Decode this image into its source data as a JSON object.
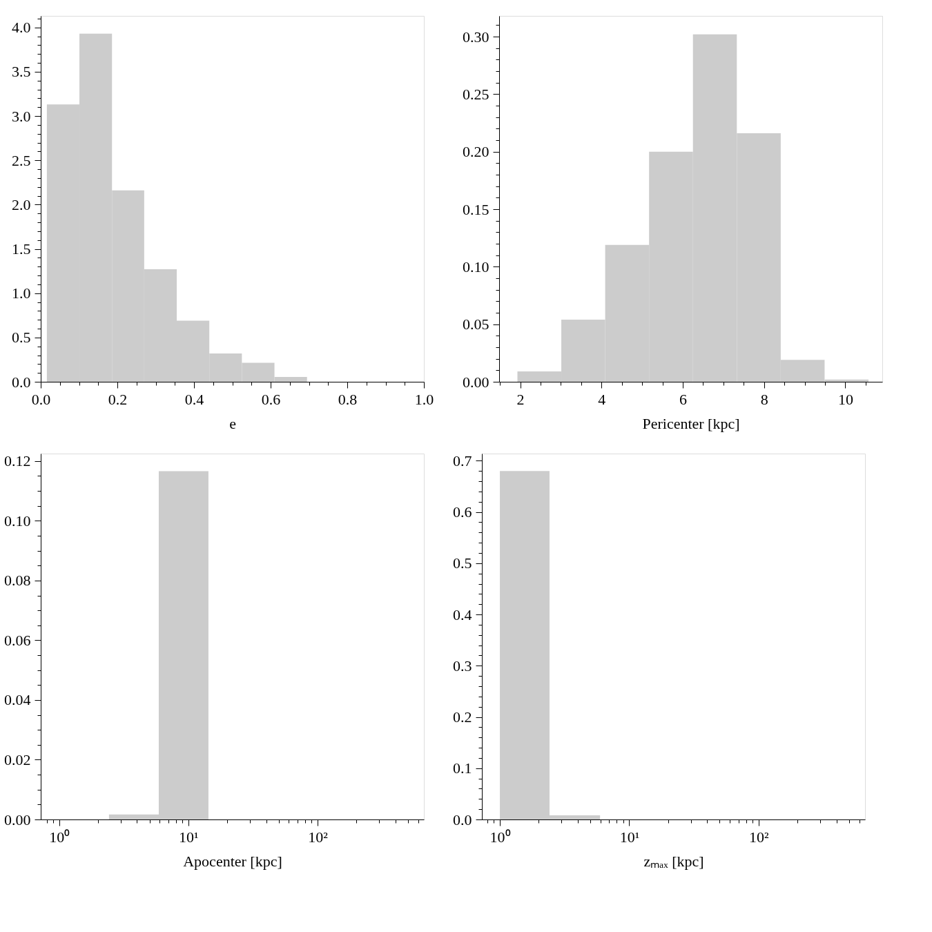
{
  "chart_data": [
    {
      "type": "histogram",
      "xlabel": "e",
      "bins": [
        0.016,
        0.101,
        0.186,
        0.27,
        0.355,
        0.44,
        0.525,
        0.61,
        0.695
      ],
      "values": [
        3.13,
        3.93,
        2.16,
        1.27,
        0.69,
        0.32,
        0.215,
        0.054
      ],
      "color": "#cccccc",
      "xlim": [
        0,
        1
      ],
      "ylim": [
        0,
        4.13
      ],
      "xticks": [
        {
          "value": 0,
          "label": "0.0"
        },
        {
          "value": 0.05,
          "label": null
        },
        {
          "value": 0.1,
          "label": null
        },
        {
          "value": 0.15,
          "label": null
        },
        0.2,
        {
          "value": 0.25,
          "label": null
        },
        {
          "value": 0.3,
          "label": null
        },
        {
          "value": 0.35,
          "label": null
        },
        0.4,
        {
          "value": 0.45,
          "label": null
        },
        {
          "value": 0.5,
          "label": null
        },
        {
          "value": 0.55,
          "label": null
        },
        0.6,
        {
          "value": 0.65,
          "label": null
        },
        {
          "value": 0.7,
          "label": null
        },
        {
          "value": 0.75,
          "label": null
        },
        0.8,
        {
          "value": 0.85,
          "label": null
        },
        {
          "value": 0.9,
          "label": null
        },
        {
          "value": 0.95,
          "label": null
        },
        {
          "value": 1,
          "label": "1.0"
        }
      ],
      "yticks": [
        {
          "value": 0,
          "label": "0.0"
        },
        {
          "value": 0.1,
          "label": null
        },
        {
          "value": 0.2,
          "label": null
        },
        {
          "value": 0.3,
          "label": null
        },
        {
          "value": 0.4,
          "label": null
        },
        0.5,
        {
          "value": 0.6,
          "label": null
        },
        {
          "value": 0.7,
          "label": null
        },
        {
          "value": 0.8,
          "label": null
        },
        {
          "value": 0.9,
          "label": null
        },
        {
          "value": 1,
          "label": "1.0"
        },
        {
          "value": 1.1,
          "label": null
        },
        {
          "value": 1.2,
          "label": null
        },
        {
          "value": 1.3,
          "label": null
        },
        {
          "value": 1.4,
          "label": null
        },
        1.5,
        {
          "value": 1.6,
          "label": null
        },
        {
          "value": 1.7,
          "label": null
        },
        {
          "value": 1.8,
          "label": null
        },
        {
          "value": 1.9,
          "label": null
        },
        {
          "value": 2,
          "label": "2.0"
        },
        {
          "value": 2.1,
          "label": null
        },
        {
          "value": 2.2,
          "label": null
        },
        {
          "value": 2.3,
          "label": null
        },
        {
          "value": 2.4,
          "label": null
        },
        2.5,
        {
          "value": 2.6,
          "label": null
        },
        {
          "value": 2.7,
          "label": null
        },
        {
          "value": 2.8,
          "label": null
        },
        {
          "value": 2.9,
          "label": null
        },
        {
          "value": 3,
          "label": "3.0"
        },
        {
          "value": 3.1,
          "label": null
        },
        {
          "value": 3.2,
          "label": null
        },
        {
          "value": 3.3,
          "label": null
        },
        {
          "value": 3.4,
          "label": null
        },
        3.5,
        {
          "value": 3.6,
          "label": null
        },
        {
          "value": 3.7,
          "label": null
        },
        {
          "value": 3.8,
          "label": null
        },
        {
          "value": 3.9,
          "label": null
        },
        {
          "value": 4,
          "label": "4.0"
        },
        {
          "value": 4.1,
          "label": null
        }
      ]
    },
    {
      "type": "histogram",
      "xlabel": "Pericenter [kpc]",
      "bins": [
        1.93,
        3.01,
        4.09,
        5.17,
        6.25,
        7.33,
        8.41,
        9.49,
        10.57
      ],
      "values": [
        0.009,
        0.054,
        0.119,
        0.2,
        0.302,
        0.216,
        0.019,
        0.002
      ],
      "color": "#cccccc",
      "xlim": [
        1.48,
        10.91
      ],
      "ylim": [
        0,
        0.318
      ],
      "xticks": [
        {
          "value": 1.5,
          "label": null
        },
        2,
        {
          "value": 2.5,
          "label": null
        },
        {
          "value": 3,
          "label": null
        },
        {
          "value": 3.5,
          "label": null
        },
        4,
        {
          "value": 4.5,
          "label": null
        },
        {
          "value": 5,
          "label": null
        },
        {
          "value": 5.5,
          "label": null
        },
        6,
        {
          "value": 6.5,
          "label": null
        },
        {
          "value": 7,
          "label": null
        },
        {
          "value": 7.5,
          "label": null
        },
        8,
        {
          "value": 8.5,
          "label": null
        },
        {
          "value": 9,
          "label": null
        },
        {
          "value": 9.5,
          "label": null
        },
        10,
        {
          "value": 10.5,
          "label": null
        }
      ],
      "yticks": [
        {
          "value": 0,
          "label": "0.00"
        },
        {
          "value": 0.01,
          "label": null
        },
        {
          "value": 0.02,
          "label": null
        },
        {
          "value": 0.03,
          "label": null
        },
        {
          "value": 0.04,
          "label": null
        },
        0.05,
        {
          "value": 0.06,
          "label": null
        },
        {
          "value": 0.07,
          "label": null
        },
        {
          "value": 0.08,
          "label": null
        },
        {
          "value": 0.09,
          "label": null
        },
        {
          "value": 0.1,
          "label": "0.10"
        },
        {
          "value": 0.11,
          "label": null
        },
        {
          "value": 0.12,
          "label": null
        },
        {
          "value": 0.13,
          "label": null
        },
        {
          "value": 0.14,
          "label": null
        },
        0.15,
        {
          "value": 0.16,
          "label": null
        },
        {
          "value": 0.17,
          "label": null
        },
        {
          "value": 0.18,
          "label": null
        },
        {
          "value": 0.19,
          "label": null
        },
        {
          "value": 0.2,
          "label": "0.20"
        },
        {
          "value": 0.21,
          "label": null
        },
        {
          "value": 0.22,
          "label": null
        },
        {
          "value": 0.23,
          "label": null
        },
        {
          "value": 0.24,
          "label": null
        },
        0.25,
        {
          "value": 0.26,
          "label": null
        },
        {
          "value": 0.27,
          "label": null
        },
        {
          "value": 0.28,
          "label": null
        },
        {
          "value": 0.29,
          "label": null
        },
        {
          "value": 0.3,
          "label": "0.30"
        },
        {
          "value": 0.31,
          "label": null
        }
      ]
    },
    {
      "type": "histogram",
      "xlabel": "Apocenter [kpc]",
      "log": "x",
      "bins": [
        2.43,
        5.9,
        14.3
      ],
      "values": [
        0.0017,
        0.1166
      ],
      "color": "#cccccc",
      "xlim": [
        0.72,
        665
      ],
      "ylim": [
        0,
        0.1225
      ],
      "xticks": [
        {
          "value": 0.8,
          "label": null
        },
        {
          "value": 0.9,
          "label": null
        },
        {
          "value": 1,
          "label": "10⁰"
        },
        {
          "value": 2,
          "label": null
        },
        {
          "value": 3,
          "label": null
        },
        {
          "value": 4,
          "label": null
        },
        {
          "value": 5,
          "label": null
        },
        {
          "value": 6,
          "label": null
        },
        {
          "value": 7,
          "label": null
        },
        {
          "value": 8,
          "label": null
        },
        {
          "value": 9,
          "label": null
        },
        {
          "value": 10,
          "label": "10¹"
        },
        {
          "value": 20,
          "label": null
        },
        {
          "value": 30,
          "label": null
        },
        {
          "value": 40,
          "label": null
        },
        {
          "value": 50,
          "label": null
        },
        {
          "value": 60,
          "label": null
        },
        {
          "value": 70,
          "label": null
        },
        {
          "value": 80,
          "label": null
        },
        {
          "value": 90,
          "label": null
        },
        {
          "value": 100,
          "label": "10²"
        },
        {
          "value": 200,
          "label": null
        },
        {
          "value": 300,
          "label": null
        },
        {
          "value": 400,
          "label": null
        },
        {
          "value": 500,
          "label": null
        },
        {
          "value": 600,
          "label": null
        }
      ],
      "yticks": [
        {
          "value": 0,
          "label": "0.00"
        },
        {
          "value": 0.005,
          "label": null
        },
        {
          "value": 0.01,
          "label": null
        },
        {
          "value": 0.015,
          "label": null
        },
        0.02,
        {
          "value": 0.025,
          "label": null
        },
        {
          "value": 0.03,
          "label": null
        },
        {
          "value": 0.035,
          "label": null
        },
        0.04,
        {
          "value": 0.045,
          "label": null
        },
        {
          "value": 0.05,
          "label": null
        },
        {
          "value": 0.055,
          "label": null
        },
        0.06,
        {
          "value": 0.065,
          "label": null
        },
        {
          "value": 0.07,
          "label": null
        },
        {
          "value": 0.075,
          "label": null
        },
        0.08,
        {
          "value": 0.085,
          "label": null
        },
        {
          "value": 0.09,
          "label": null
        },
        {
          "value": 0.095,
          "label": null
        },
        {
          "value": 0.1,
          "label": "0.10"
        },
        {
          "value": 0.105,
          "label": null
        },
        {
          "value": 0.11,
          "label": null
        },
        {
          "value": 0.115,
          "label": null
        },
        0.12
      ]
    },
    {
      "type": "histogram",
      "xlabel": "zₘₐₓ [kpc]",
      "log": "x",
      "bins": [
        1.0,
        2.42,
        5.95
      ],
      "values": [
        0.68,
        0.008
      ],
      "color": "#cccccc",
      "xlim": [
        0.726,
        665
      ],
      "ylim": [
        0,
        0.714
      ],
      "xticks": [
        {
          "value": 0.8,
          "label": null
        },
        {
          "value": 0.9,
          "label": null
        },
        {
          "value": 1,
          "label": "10⁰"
        },
        {
          "value": 2,
          "label": null
        },
        {
          "value": 3,
          "label": null
        },
        {
          "value": 4,
          "label": null
        },
        {
          "value": 5,
          "label": null
        },
        {
          "value": 6,
          "label": null
        },
        {
          "value": 7,
          "label": null
        },
        {
          "value": 8,
          "label": null
        },
        {
          "value": 9,
          "label": null
        },
        {
          "value": 10,
          "label": "10¹"
        },
        {
          "value": 20,
          "label": null
        },
        {
          "value": 30,
          "label": null
        },
        {
          "value": 40,
          "label": null
        },
        {
          "value": 50,
          "label": null
        },
        {
          "value": 60,
          "label": null
        },
        {
          "value": 70,
          "label": null
        },
        {
          "value": 80,
          "label": null
        },
        {
          "value": 90,
          "label": null
        },
        {
          "value": 100,
          "label": "10²"
        },
        {
          "value": 200,
          "label": null
        },
        {
          "value": 300,
          "label": null
        },
        {
          "value": 400,
          "label": null
        },
        {
          "value": 500,
          "label": null
        },
        {
          "value": 600,
          "label": null
        }
      ],
      "yticks": [
        {
          "value": 0,
          "label": "0.0"
        },
        {
          "value": 0.02,
          "label": null
        },
        {
          "value": 0.04,
          "label": null
        },
        {
          "value": 0.06,
          "label": null
        },
        {
          "value": 0.08,
          "label": null
        },
        0.1,
        {
          "value": 0.12,
          "label": null
        },
        {
          "value": 0.14,
          "label": null
        },
        {
          "value": 0.16,
          "label": null
        },
        {
          "value": 0.18,
          "label": null
        },
        0.2,
        {
          "value": 0.22,
          "label": null
        },
        {
          "value": 0.24,
          "label": null
        },
        {
          "value": 0.26,
          "label": null
        },
        {
          "value": 0.28,
          "label": null
        },
        0.3,
        {
          "value": 0.32,
          "label": null
        },
        {
          "value": 0.34,
          "label": null
        },
        {
          "value": 0.36,
          "label": null
        },
        {
          "value": 0.38,
          "label": null
        },
        0.4,
        {
          "value": 0.42,
          "label": null
        },
        {
          "value": 0.44,
          "label": null
        },
        {
          "value": 0.46,
          "label": null
        },
        {
          "value": 0.48,
          "label": null
        },
        0.5,
        {
          "value": 0.52,
          "label": null
        },
        {
          "value": 0.54,
          "label": null
        },
        {
          "value": 0.56,
          "label": null
        },
        {
          "value": 0.58,
          "label": null
        },
        0.6,
        {
          "value": 0.62,
          "label": null
        },
        {
          "value": 0.64,
          "label": null
        },
        {
          "value": 0.66,
          "label": null
        },
        {
          "value": 0.68,
          "label": null
        },
        0.7
      ]
    }
  ]
}
